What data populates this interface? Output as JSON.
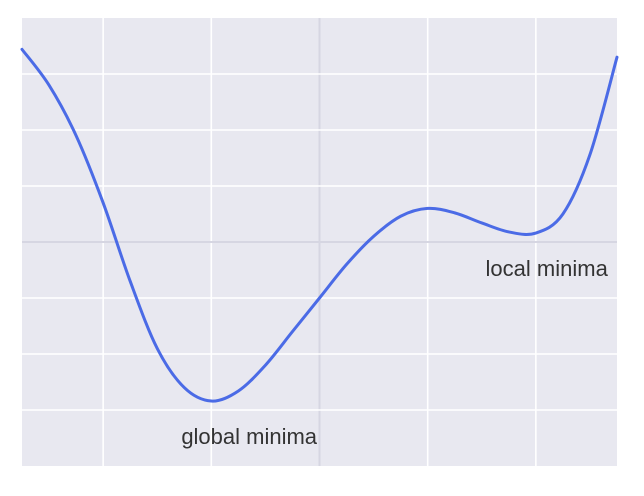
{
  "chart_data": {
    "type": "line",
    "title": "",
    "xlabel": "",
    "ylabel": "",
    "grid": true,
    "xlim": [
      -2.75,
      2.75
    ],
    "ylim": [
      -2.0,
      2.0
    ],
    "x_ticks": [
      -2,
      -1,
      0,
      1,
      2
    ],
    "y_ticks": [
      -1.5,
      -1,
      -0.5,
      0,
      0.5,
      1,
      1.5
    ],
    "series": [
      {
        "name": "",
        "color": "#4b6be6",
        "x": [
          -2.75,
          -2.5,
          -2.25,
          -2.0,
          -1.75,
          -1.5,
          -1.25,
          -1.0,
          -0.75,
          -0.5,
          -0.25,
          0.0,
          0.25,
          0.5,
          0.75,
          1.0,
          1.25,
          1.5,
          1.75,
          2.0,
          2.25,
          2.5,
          2.75
        ],
        "y": [
          1.72,
          1.4,
          0.95,
          0.35,
          -0.35,
          -0.95,
          -1.3,
          -1.42,
          -1.33,
          -1.1,
          -0.8,
          -0.5,
          -0.2,
          0.05,
          0.23,
          0.3,
          0.26,
          0.17,
          0.09,
          0.08,
          0.25,
          0.78,
          1.65
        ]
      }
    ],
    "annotations": [
      {
        "text": "global minima",
        "x": -0.65,
        "y": -1.75
      },
      {
        "text": "local minima",
        "x": 2.1,
        "y": -0.25
      }
    ]
  }
}
